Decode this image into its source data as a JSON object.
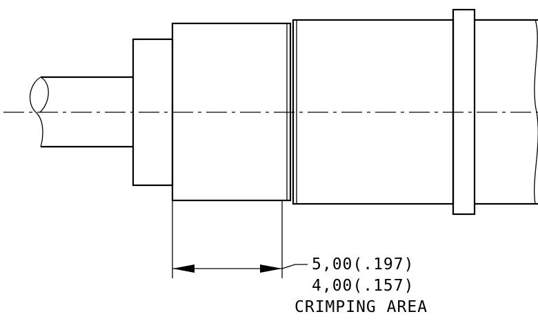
{
  "dimension": {
    "max_value": "5,00(.197)",
    "min_value": "4,00(.157)",
    "caption": "CRIMPING AREA"
  }
}
